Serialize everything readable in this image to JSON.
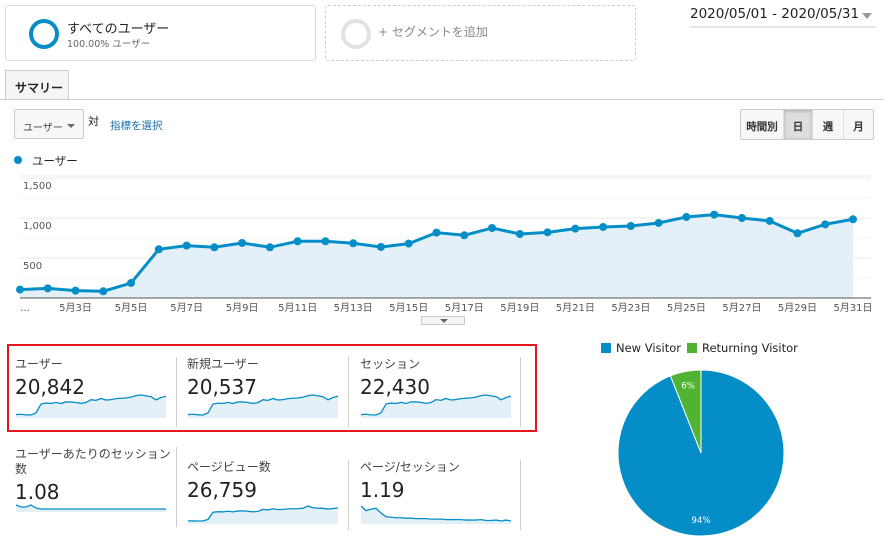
{
  "segments": {
    "active": {
      "title": "すべてのユーザー",
      "subtitle": "100.00% ユーザー"
    },
    "add_label": "+ セグメントを追加"
  },
  "date_range": "2020/05/01 - 2020/05/31",
  "tabs": [
    {
      "label": "サマリー",
      "active": true
    }
  ],
  "controls": {
    "metric_select": "ユーザー",
    "vs_label": "対",
    "pick_metric": "指標を選択",
    "granularity": [
      {
        "label": "時間別",
        "active": false
      },
      {
        "label": "日",
        "active": true
      },
      {
        "label": "週",
        "active": false
      },
      {
        "label": "月",
        "active": false
      }
    ]
  },
  "colors": {
    "accent": "#058dc7",
    "returning": "#50b432",
    "area": "#e4f0f8",
    "highlight": "#e5181e"
  },
  "chart_data": [
    {
      "type": "area",
      "series": [
        {
          "name": "ユーザー",
          "values": [
            105,
            121,
            92,
            84,
            188,
            609,
            655,
            634,
            688,
            634,
            709,
            709,
            684,
            638,
            680,
            817,
            784,
            875,
            800,
            821,
            867,
            888,
            900,
            938,
            1013,
            1042,
            1000,
            963,
            809,
            921,
            984
          ]
        }
      ],
      "x": [
        "5/1",
        "5/2",
        "5/3",
        "5/4",
        "5/5",
        "5/6",
        "5/7",
        "5/8",
        "5/9",
        "5/10",
        "5/11",
        "5/12",
        "5/13",
        "5/14",
        "5/15",
        "5/16",
        "5/17",
        "5/18",
        "5/19",
        "5/20",
        "5/21",
        "5/22",
        "5/23",
        "5/24",
        "5/25",
        "5/26",
        "5/27",
        "5/28",
        "5/29",
        "5/30",
        "5/31"
      ],
      "xtick_labels": [
        "…",
        "5月3日",
        "5月5日",
        "5月7日",
        "5月9日",
        "5月11日",
        "5月13日",
        "5月15日",
        "5月17日",
        "5月19日",
        "5月21日",
        "5月23日",
        "5月25日",
        "5月27日",
        "5月29日",
        "5月31日"
      ],
      "ytick_labels": [
        "500",
        "1,000",
        "1,500"
      ],
      "ylim": [
        0,
        1500
      ],
      "grid": true
    },
    {
      "type": "pie",
      "legend": "top",
      "slices": [
        {
          "name": "New Visitor",
          "value": 94,
          "label": "94%",
          "color": "#058dc7"
        },
        {
          "name": "Returning Visitor",
          "value": 6,
          "label": "6%",
          "color": "#50b432"
        }
      ]
    }
  ],
  "metrics": [
    {
      "label": "ユーザー",
      "value": "20,842",
      "spark": [
        105,
        121,
        92,
        84,
        188,
        609,
        655,
        634,
        688,
        634,
        709,
        709,
        684,
        638,
        680,
        817,
        784,
        875,
        800,
        821,
        867,
        888,
        900,
        938,
        1013,
        1042,
        1000,
        963,
        809,
        921,
        984
      ]
    },
    {
      "label": "新規ユーザー",
      "value": "20,537",
      "spark": [
        100,
        116,
        88,
        80,
        180,
        600,
        645,
        625,
        678,
        625,
        700,
        700,
        675,
        630,
        670,
        806,
        774,
        864,
        790,
        810,
        856,
        877,
        888,
        926,
        1000,
        1030,
        988,
        950,
        798,
        910,
        972
      ]
    },
    {
      "label": "セッション",
      "value": "22,430",
      "spark": [
        110,
        128,
        98,
        90,
        200,
        660,
        705,
        684,
        742,
        684,
        764,
        764,
        737,
        690,
        733,
        880,
        845,
        942,
        862,
        885,
        934,
        956,
        970,
        1010,
        1090,
        1120,
        1077,
        1037,
        871,
        992,
        1060
      ]
    },
    {
      "label": "ユーザーあたりのセッション数",
      "value": "1.08",
      "spark": [
        1.12,
        1.1,
        1.1,
        1.12,
        1.09,
        1.08,
        1.08,
        1.08,
        1.08,
        1.08,
        1.08,
        1.08,
        1.08,
        1.08,
        1.08,
        1.08,
        1.08,
        1.08,
        1.08,
        1.08,
        1.08,
        1.08,
        1.08,
        1.08,
        1.08,
        1.08,
        1.08,
        1.08,
        1.08,
        1.08,
        1.08
      ]
    },
    {
      "label": "ページビュー数",
      "value": "26,759",
      "spark": [
        130,
        125,
        120,
        122,
        230,
        720,
        760,
        745,
        790,
        745,
        810,
        815,
        790,
        750,
        780,
        920,
        880,
        960,
        900,
        920,
        950,
        960,
        970,
        990,
        1150,
        1030,
        1000,
        990,
        940,
        980,
        1010
      ]
    },
    {
      "label": "ページ/セッション",
      "value": "1.19",
      "spark": [
        1.45,
        1.35,
        1.38,
        1.4,
        1.3,
        1.22,
        1.21,
        1.2,
        1.2,
        1.19,
        1.19,
        1.18,
        1.18,
        1.18,
        1.17,
        1.17,
        1.17,
        1.16,
        1.16,
        1.16,
        1.16,
        1.15,
        1.15,
        1.15,
        1.16,
        1.14,
        1.14,
        1.15,
        1.13,
        1.15,
        1.13
      ]
    }
  ]
}
